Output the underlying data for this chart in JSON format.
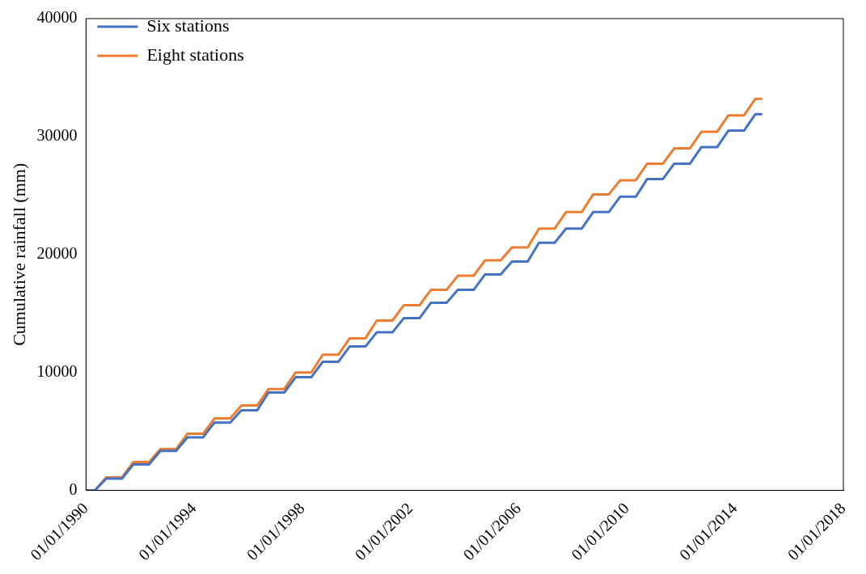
{
  "chart_data": {
    "type": "line",
    "ylabel": "Cumulative rainfall (mm)",
    "x": [
      "1990-01-01",
      "1990-05-01",
      "1990-10-01",
      "1991-05-01",
      "1991-10-01",
      "1992-05-01",
      "1992-10-01",
      "1993-05-01",
      "1993-10-01",
      "1994-05-01",
      "1994-10-01",
      "1995-05-01",
      "1995-10-01",
      "1996-05-01",
      "1996-10-01",
      "1997-05-01",
      "1997-10-01",
      "1998-05-01",
      "1998-10-01",
      "1999-05-01",
      "1999-10-01",
      "2000-05-01",
      "2000-10-01",
      "2001-05-01",
      "2001-10-01",
      "2002-05-01",
      "2002-10-01",
      "2003-05-01",
      "2003-10-01",
      "2004-05-01",
      "2004-10-01",
      "2005-05-01",
      "2005-10-01",
      "2006-05-01",
      "2006-10-01",
      "2007-05-01",
      "2007-10-01",
      "2008-05-01",
      "2008-10-01",
      "2009-05-01",
      "2009-10-01",
      "2010-05-01",
      "2010-10-01",
      "2011-05-01",
      "2011-10-01",
      "2012-05-01",
      "2012-10-01",
      "2013-05-01",
      "2013-10-01",
      "2014-05-01",
      "2014-10-01",
      "2015-01-01"
    ],
    "series": [
      {
        "name": "Six stations",
        "color": "#4472c4",
        "values": [
          0,
          0,
          1000,
          1000,
          2200,
          2200,
          3350,
          3350,
          4500,
          4500,
          5750,
          5750,
          6800,
          6800,
          8300,
          8300,
          9600,
          9600,
          10900,
          10900,
          12200,
          12200,
          13400,
          13400,
          14600,
          14600,
          15900,
          15900,
          17000,
          17000,
          18300,
          18300,
          19400,
          19400,
          21000,
          21000,
          22200,
          22200,
          23600,
          23600,
          24900,
          24900,
          26400,
          26400,
          27700,
          27700,
          29100,
          29100,
          30500,
          30500,
          31900,
          31900
        ]
      },
      {
        "name": "Eight stations",
        "color": "#ed7d31",
        "values": [
          0,
          0,
          1100,
          1100,
          2400,
          2400,
          3500,
          3500,
          4800,
          4800,
          6100,
          6100,
          7200,
          7200,
          8600,
          8600,
          10000,
          10000,
          11500,
          11500,
          12900,
          12900,
          14400,
          14400,
          15700,
          15700,
          17000,
          17000,
          18200,
          18200,
          19500,
          19500,
          20600,
          20600,
          22200,
          22200,
          23600,
          23600,
          25100,
          25100,
          26300,
          26300,
          27700,
          27700,
          29000,
          29000,
          30400,
          30400,
          31800,
          31800,
          33200,
          33200
        ]
      }
    ],
    "xlim": [
      "1990-01-01",
      "2018-01-01"
    ],
    "xticks": [
      {
        "value": "1990-01-01",
        "label": "01/01/1990"
      },
      {
        "value": "1994-01-01",
        "label": "01/01/1994"
      },
      {
        "value": "1998-01-01",
        "label": "01/01/1998"
      },
      {
        "value": "2002-01-01",
        "label": "01/01/2002"
      },
      {
        "value": "2006-01-01",
        "label": "01/01/2006"
      },
      {
        "value": "2010-01-01",
        "label": "01/01/2010"
      },
      {
        "value": "2014-01-01",
        "label": "01/01/2014"
      },
      {
        "value": "2018-01-01",
        "label": "01/01/2018"
      }
    ],
    "ylim": [
      0,
      40000
    ],
    "yticks": [
      0,
      10000,
      20000,
      30000,
      40000
    ],
    "grid": false,
    "legend": "top left",
    "marker": "none",
    "line_style": "solid"
  }
}
